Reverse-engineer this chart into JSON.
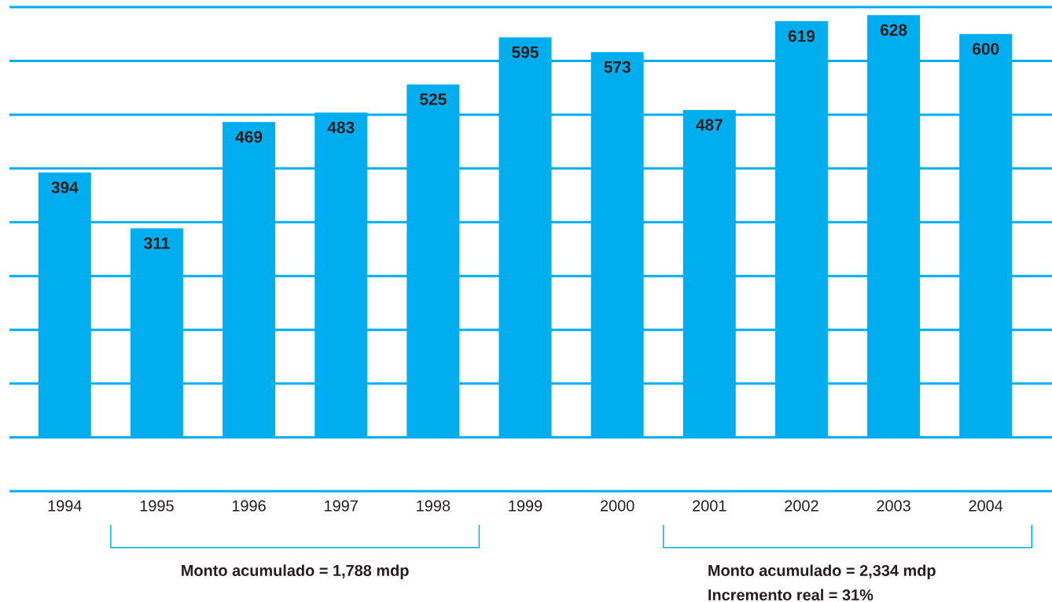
{
  "chart_data": {
    "type": "bar",
    "categories": [
      "1994",
      "1995",
      "1996",
      "1997",
      "1998",
      "1999",
      "2000",
      "2001",
      "2002",
      "2003",
      "2004"
    ],
    "values": [
      394,
      311,
      469,
      483,
      525,
      595,
      573,
      487,
      619,
      628,
      600
    ],
    "color": "#00aeef",
    "data_labels": true,
    "grid": "y",
    "tick_labels": "x",
    "ylim": [
      -80,
      640
    ],
    "yticks": [
      {
        "value": -80,
        "label": null
      },
      {
        "value": 0,
        "label": null
      },
      {
        "value": 80,
        "label": null
      },
      {
        "value": 160,
        "label": null
      },
      {
        "value": 240,
        "label": null
      },
      {
        "value": 320,
        "label": null
      },
      {
        "value": 400,
        "label": null
      },
      {
        "value": 480,
        "label": null
      },
      {
        "value": 560,
        "label": null
      },
      {
        "value": 640,
        "label": null
      }
    ],
    "annotations": [
      "Monto acumulado = 1,788 mdp",
      "Monto acumulado = 2,334 mdp",
      "Incremento real = 31%"
    ]
  }
}
